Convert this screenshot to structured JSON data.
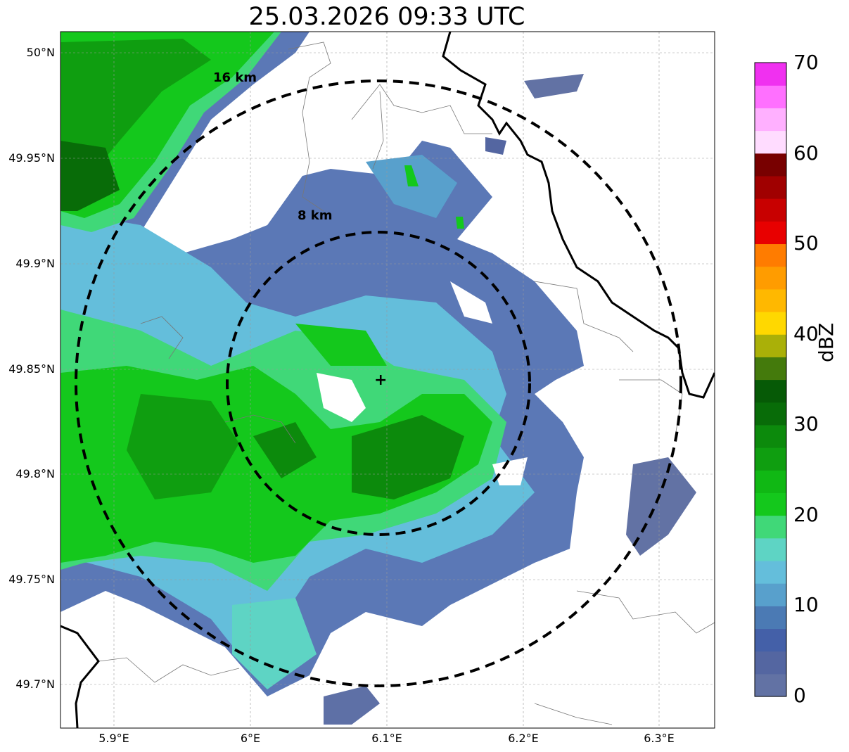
{
  "title": "25.03.2026 09:33 UTC",
  "map": {
    "lat_ticks": [
      "50°N",
      "49.95°N",
      "49.9°N",
      "49.85°N",
      "49.8°N",
      "49.75°N",
      "49.7°N"
    ],
    "lon_ticks": [
      "5.9°E",
      "6°E",
      "6.1°E",
      "6.2°E",
      "6.3°E"
    ],
    "ring_labels": [
      "16 km",
      "8 km"
    ],
    "radar_marker": "+"
  },
  "colorbar": {
    "label": "dBZ",
    "ticks": [
      "0",
      "10",
      "20",
      "30",
      "40",
      "50",
      "60",
      "70"
    ],
    "colors": [
      "#6272a4",
      "#5466a1",
      "#4460a8",
      "#4b7ab4",
      "#58a0cc",
      "#64bedb",
      "#5ed4c4",
      "#40d878",
      "#14c81c",
      "#10b814",
      "#0f9e10",
      "#0c8a0c",
      "#086c08",
      "#065a06",
      "#447a0c",
      "#aab008",
      "#ffd800",
      "#ffb800",
      "#ff9c00",
      "#ff7c00",
      "#e80000",
      "#c80000",
      "#a00000",
      "#780000",
      "#ffdcff",
      "#ffb0ff",
      "#ff70ff",
      "#f030f0"
    ]
  }
}
